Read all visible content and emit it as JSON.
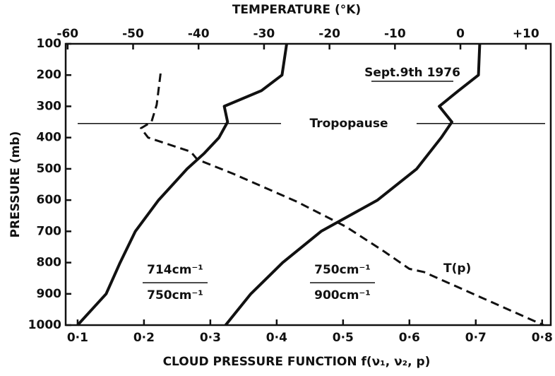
{
  "chart_data": {
    "type": "line",
    "x_label": "CLOUD PRESSURE FUNCTION f(ν₁, ν₂, p)",
    "x2_label": "TEMPERATURE (°K)",
    "y_label": "PRESSURE (mb)",
    "annotation": "Sept.9th 1976",
    "tropopause": {
      "label": "Tropopause",
      "pressure": 355
    },
    "xlim": [
      0.082,
      0.813
    ],
    "xticks": [
      {
        "value": 0.1,
        "label": "0·1"
      },
      {
        "value": 0.2,
        "label": "0·2"
      },
      {
        "value": 0.3,
        "label": "0·3"
      },
      {
        "value": 0.4,
        "label": "0·4"
      },
      {
        "value": 0.5,
        "label": "0·5"
      },
      {
        "value": 0.6,
        "label": "0·6"
      },
      {
        "value": 0.7,
        "label": "0·7"
      },
      {
        "value": 0.8,
        "label": "0·8"
      }
    ],
    "x2lim": [
      -60.3,
      13.8
    ],
    "x2ticks": [
      -60,
      -50,
      -40,
      -30,
      -20,
      -10,
      0,
      {
        "value": 10,
        "label": "+10"
      }
    ],
    "ylim": [
      1000,
      100
    ],
    "yticks": [
      100,
      200,
      300,
      400,
      500,
      600,
      700,
      800,
      900,
      1000
    ],
    "series": [
      {
        "name": "714cm⁻¹",
        "name_denominator": "750cm⁻¹",
        "color": "#111",
        "dashed": false,
        "x": [
          0.415,
          0.408,
          0.377,
          0.321,
          0.326,
          0.313,
          0.291,
          0.265,
          0.222,
          0.187,
          0.164,
          0.143,
          0.1
        ],
        "y": [
          100,
          200,
          250,
          300,
          350,
          400,
          450,
          500,
          600,
          700,
          800,
          900,
          1000
        ]
      },
      {
        "name": "750cm⁻¹",
        "name_denominator": "900cm⁻¹",
        "color": "#111",
        "dashed": false,
        "x": [
          0.706,
          0.704,
          0.674,
          0.645,
          0.664,
          0.648,
          0.611,
          0.552,
          0.467,
          0.409,
          0.361,
          0.323
        ],
        "y": [
          100,
          200,
          250,
          300,
          350,
          400,
          500,
          600,
          700,
          800,
          900,
          1000
        ]
      },
      {
        "name": "T(p)",
        "color": "#111",
        "dashed": true,
        "axis": "x2",
        "x": [
          -45.8,
          -46.4,
          -47.2,
          -48.8,
          -47.7,
          -41.2,
          -40.2,
          -34.8,
          -25.0,
          -17.5,
          -11.6,
          -7.8,
          -5.6,
          3.0,
          12.7
        ],
        "y": [
          195,
          295,
          350,
          370,
          400,
          445,
          470,
          515,
          605,
          685,
          765,
          820,
          830,
          910,
          1000
        ]
      }
    ]
  }
}
